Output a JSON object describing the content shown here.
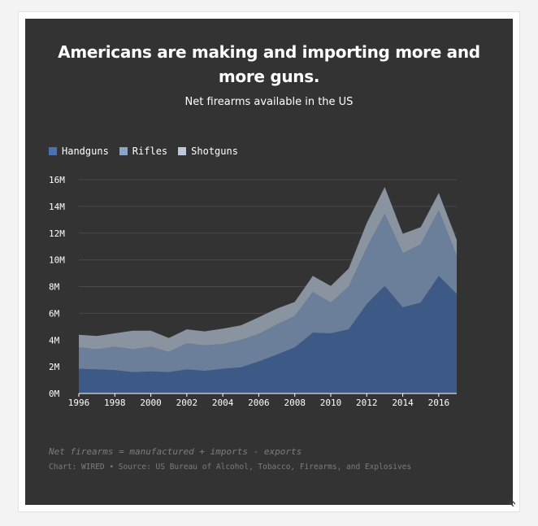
{
  "title": "Americans are making and importing more and more guns.",
  "subtitle": "Net firearms available in the US",
  "note": "Net firearms = manufactured + imports - exports",
  "source": "Chart: WIRED • Source: US Bureau of Alcohol, Tobacco, Firearms, and Explosives",
  "colors": {
    "background": "#333333",
    "handguns": "#3d5a86",
    "rifles": "#6c7f9a",
    "shotguns": "#8a93a0",
    "legend_handguns": "#4b72b0",
    "legend_rifles": "#8ea3c9",
    "legend_shotguns": "#bcc8dc",
    "gridline": "#4a4a4a",
    "text_muted": "#7d7d7d"
  },
  "chart_data": {
    "type": "area",
    "stacked": true,
    "title": "Americans are making and importing more and more guns.",
    "subtitle": "Net firearms available in the US",
    "x": [
      1996,
      1997,
      1998,
      1999,
      2000,
      2001,
      2002,
      2003,
      2004,
      2005,
      2006,
      2007,
      2008,
      2009,
      2010,
      2011,
      2012,
      2013,
      2014,
      2015,
      2016,
      2017
    ],
    "series": [
      {
        "name": "Handguns",
        "values": [
          1.85,
          1.8,
          1.75,
          1.6,
          1.65,
          1.6,
          1.8,
          1.7,
          1.85,
          1.95,
          2.4,
          2.9,
          3.45,
          4.55,
          4.5,
          4.8,
          6.7,
          8.05,
          6.45,
          6.8,
          8.8,
          7.45
        ]
      },
      {
        "name": "Rifles",
        "values": [
          1.6,
          1.5,
          1.75,
          1.7,
          1.85,
          1.5,
          1.95,
          1.9,
          1.85,
          2.05,
          2.05,
          2.25,
          2.35,
          3.05,
          2.3,
          3.2,
          4.2,
          5.4,
          4.05,
          4.35,
          4.9,
          2.85
        ]
      },
      {
        "name": "Shotguns",
        "values": [
          0.95,
          1.0,
          1.0,
          1.4,
          1.2,
          1.05,
          1.05,
          1.05,
          1.15,
          1.1,
          1.25,
          1.2,
          1.05,
          1.2,
          1.25,
          1.35,
          1.85,
          2.0,
          1.45,
          1.3,
          1.3,
          1.2
        ]
      }
    ],
    "xticks": [
      "1996",
      "1998",
      "2000",
      "2002",
      "2004",
      "2006",
      "2008",
      "2010",
      "2012",
      "2014",
      "2016"
    ],
    "yticks": [
      "0M",
      "2M",
      "4M",
      "6M",
      "8M",
      "10M",
      "12M",
      "14M",
      "16M"
    ],
    "xlim": [
      1996,
      2017
    ],
    "ylim": [
      0,
      16
    ],
    "xlabel": "",
    "ylabel": "",
    "grid": true,
    "legend": "top-left"
  }
}
